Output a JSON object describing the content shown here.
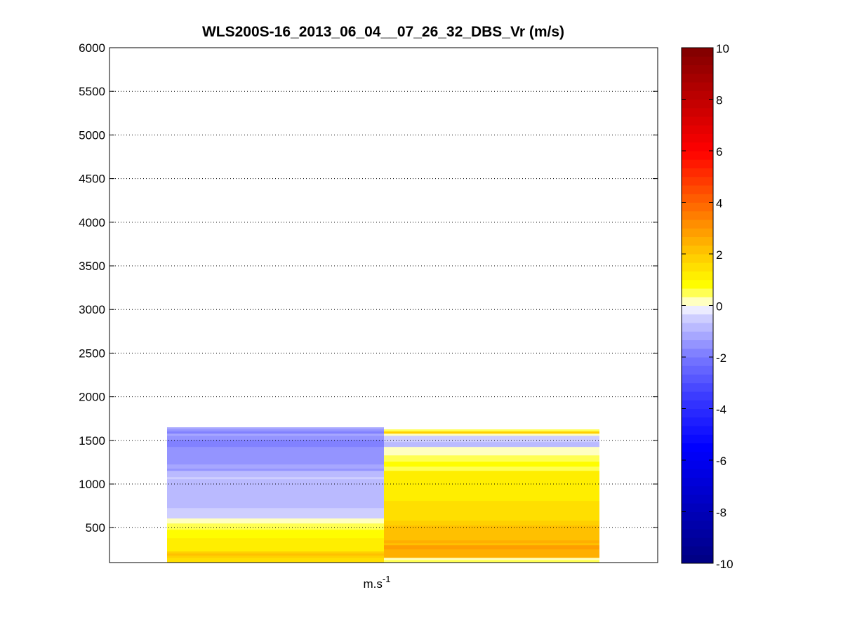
{
  "chart_data": {
    "type": "heatmap",
    "title": "WLS200S-16_2013_06_04__07_26_32_DBS_Vr (m/s)",
    "xlabel_base": "m.s",
    "xlabel_sup": "-1",
    "ylabel": "",
    "ylim": [
      100,
      6000
    ],
    "yticks": [
      500,
      1000,
      1500,
      2000,
      2500,
      3000,
      3500,
      4000,
      4500,
      5000,
      5500,
      6000
    ],
    "grid": "y-dotted",
    "colorbar": {
      "clim": [
        -10,
        10
      ],
      "ticks": [
        -10,
        -8,
        -6,
        -4,
        -2,
        0,
        2,
        4,
        6,
        8,
        10
      ],
      "levels": 60,
      "stops": [
        [
          -10,
          "#000080"
        ],
        [
          -5.5,
          "#0000ff"
        ],
        [
          -3.5,
          "#3c3cff"
        ],
        [
          -2,
          "#7878ff"
        ],
        [
          -1,
          "#b0b0ff"
        ],
        [
          -0.34,
          "#d8d8ff"
        ],
        [
          0,
          "#ffffff"
        ],
        [
          0.34,
          "#ffff80"
        ],
        [
          0.8,
          "#ffff00"
        ],
        [
          2,
          "#ffc800"
        ],
        [
          4,
          "#ff6400"
        ],
        [
          6,
          "#ff0000"
        ],
        [
          10,
          "#800000"
        ]
      ]
    },
    "columns": [
      {
        "segments": [
          [
            1626,
            1650,
            -1.2
          ],
          [
            1602,
            1626,
            -1.6
          ],
          [
            1577,
            1602,
            -1.8
          ],
          [
            1553,
            1577,
            -1.3
          ],
          [
            1505,
            1553,
            -1.6
          ],
          [
            1425,
            1505,
            -1.9
          ],
          [
            1280,
            1425,
            -1.5
          ],
          [
            1224,
            1280,
            -1.4
          ],
          [
            1175,
            1224,
            -1.2
          ],
          [
            1151,
            1175,
            -1.5
          ],
          [
            1079,
            1151,
            -1.0
          ],
          [
            1055,
            1079,
            -0.4
          ],
          [
            725,
            1055,
            -1.0
          ],
          [
            605,
            725,
            -0.4
          ],
          [
            548,
            605,
            0
          ],
          [
            476,
            548,
            0.5
          ],
          [
            379,
            476,
            0.9
          ],
          [
            227,
            379,
            1.3
          ],
          [
            203,
            227,
            1.8
          ],
          [
            179,
            203,
            2.0
          ],
          [
            154,
            179,
            1.8
          ],
          [
            100,
            154,
            1.6
          ]
        ]
      },
      {
        "segments": [
          [
            1602,
            1626,
            0.5
          ],
          [
            1577,
            1602,
            1.8
          ],
          [
            1553,
            1577,
            0
          ],
          [
            1481,
            1553,
            -0.4
          ],
          [
            1425,
            1481,
            -1.0
          ],
          [
            1328,
            1425,
            0
          ],
          [
            1256,
            1328,
            0.5
          ],
          [
            1199,
            1256,
            0.9
          ],
          [
            1151,
            1199,
            0.5
          ],
          [
            1055,
            1151,
            1.3
          ],
          [
            1031,
            1055,
            1.1
          ],
          [
            806,
            1031,
            1.3
          ],
          [
            773,
            806,
            1.6
          ],
          [
            580,
            773,
            1.6
          ],
          [
            524,
            580,
            1.9
          ],
          [
            476,
            524,
            2.0
          ],
          [
            355,
            476,
            2.2
          ],
          [
            323,
            355,
            2.5
          ],
          [
            299,
            323,
            2.3
          ],
          [
            251,
            299,
            2.8
          ],
          [
            179,
            251,
            2.6
          ],
          [
            154,
            179,
            2.4
          ],
          [
            130,
            154,
            0
          ],
          [
            100,
            130,
            0.5
          ]
        ]
      }
    ]
  }
}
